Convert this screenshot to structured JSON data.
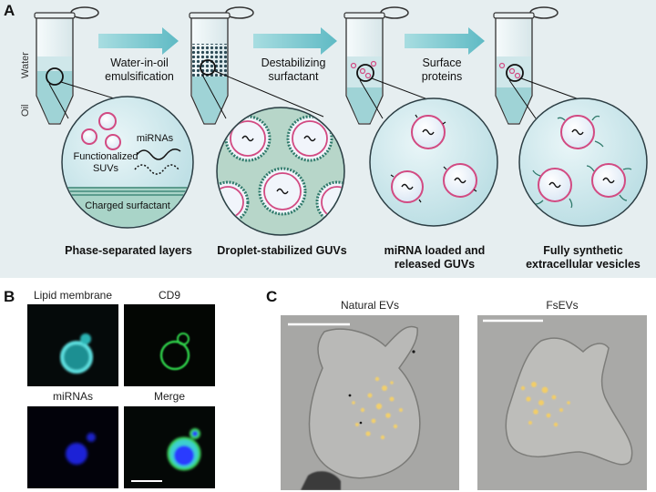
{
  "panels": {
    "a": {
      "letter": "A"
    },
    "b": {
      "letter": "B"
    },
    "c": {
      "letter": "C"
    }
  },
  "panel_a": {
    "side_labels": {
      "water": "Water",
      "oil": "Oil"
    },
    "steps": [
      {
        "line1": "Water-in-oil",
        "line2": "emulsification"
      },
      {
        "line1": "Destabilizing",
        "line2": "surfactant"
      },
      {
        "line1": "Surface",
        "line2": "proteins"
      }
    ],
    "inset_labels": {
      "mirnas": "miRNAs",
      "suvs_line1": "Functionalized",
      "suvs_line2": "SUVs",
      "surfactant": "Charged surfactant"
    },
    "captions": [
      {
        "line1": "Phase-separated layers",
        "line2": ""
      },
      {
        "line1": "Droplet-stabilized GUVs",
        "line2": ""
      },
      {
        "line1": "miRNA loaded and",
        "line2": "released GUVs"
      },
      {
        "line1": "Fully synthetic",
        "line2": "extracellular vesicles"
      }
    ]
  },
  "panel_b": {
    "images": [
      {
        "label": "Lipid membrane"
      },
      {
        "label": "CD9"
      },
      {
        "label": "miRNAs"
      },
      {
        "label": "Merge"
      }
    ]
  },
  "panel_c": {
    "images": [
      {
        "label": "Natural EVs"
      },
      {
        "label": "FsEVs"
      }
    ]
  },
  "colors": {
    "panel_bg": "#e6eef0",
    "arrow": "#7cc7cf",
    "liquid": "#9fd3d6",
    "membrane": "#d24a82",
    "surfactant": "#2f7a6b",
    "lipid_channel": "#3fc7c9",
    "cd9_channel": "#2fd04a",
    "mirna_channel": "#2a3aff"
  }
}
